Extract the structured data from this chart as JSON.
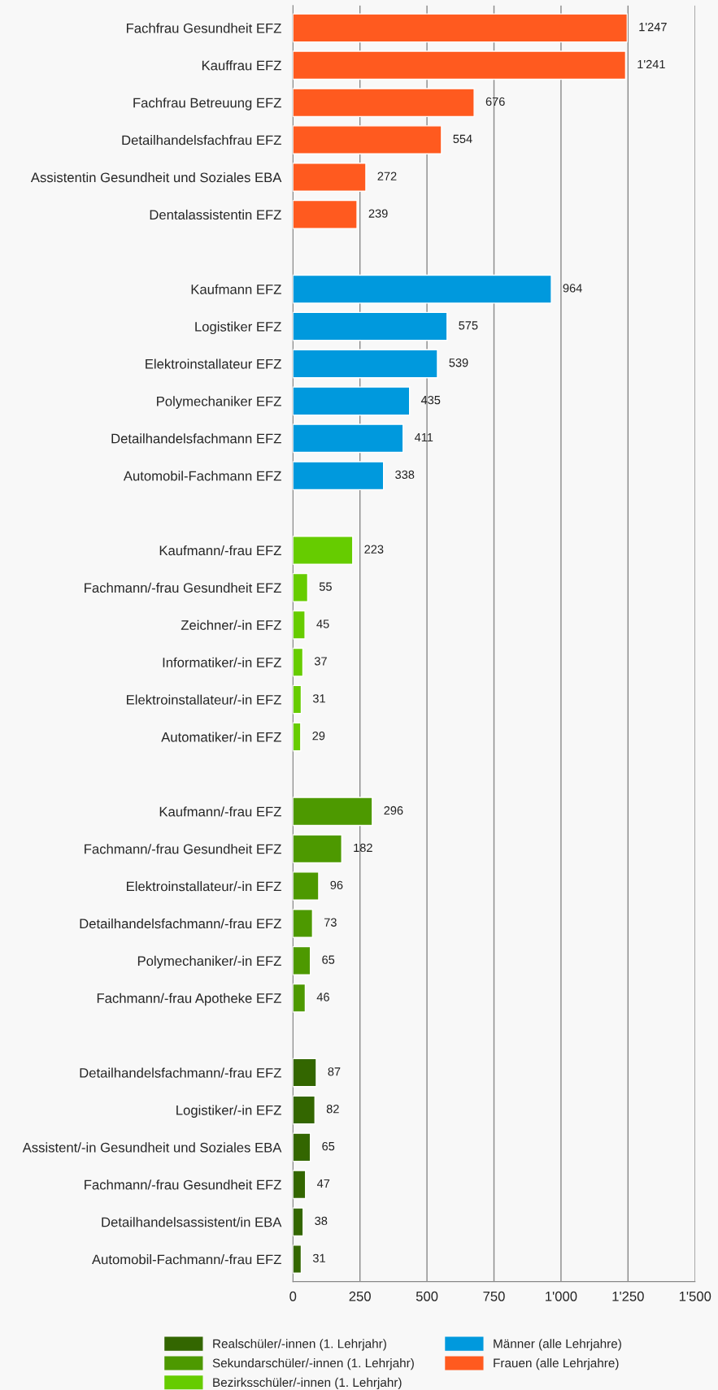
{
  "chart_data": {
    "type": "bar",
    "orientation": "horizontal",
    "categories": [
      "Fachfrau Gesundheit EFZ",
      "Kauffrau EFZ",
      "Fachfrau Betreuung EFZ",
      "Detailhandelsfachfrau EFZ",
      "Assistentin Gesundheit und Soziales EBA",
      "Dentalassistentin EFZ",
      null,
      "Kaufmann EFZ",
      "Logistiker EFZ",
      "Elektroinstallateur EFZ",
      "Polymechaniker EFZ",
      "Detailhandelsfachmann EFZ",
      "Automobil-Fachmann EFZ",
      null,
      "Kaufmann/-frau EFZ",
      "Fachmann/-frau Gesundheit EFZ",
      "Zeichner/-in EFZ",
      "Informatiker/-in EFZ",
      "Elektroinstallateur/-in EFZ",
      "Automatiker/-in EFZ",
      null,
      "Kaufmann/-frau EFZ",
      "Fachmann/-frau Gesundheit EFZ",
      "Elektroinstallateur/-in EFZ",
      "Detailhandelsfachmann/-frau EFZ",
      "Polymechaniker/-in EFZ",
      "Fachmann/-frau Apotheke EFZ",
      null,
      "Detailhandelsfachmann/-frau EFZ",
      "Logistiker/-in EFZ",
      "Assistent/-in Gesundheit und Soziales EBA",
      "Fachmann/-frau Gesundheit EFZ",
      "Detailhandelsassistent/in EBA",
      "Automobil-Fachmann/-frau EFZ"
    ],
    "series": [
      {
        "name": "Realschüler/-innen (1. Lehrjahr)",
        "color": "#336600",
        "values": [
          null,
          null,
          null,
          null,
          null,
          null,
          null,
          null,
          null,
          null,
          null,
          null,
          null,
          null,
          null,
          null,
          null,
          null,
          null,
          null,
          null,
          null,
          null,
          null,
          null,
          null,
          null,
          null,
          87,
          82,
          65,
          47,
          38,
          31
        ],
        "value_labels": [
          null,
          null,
          null,
          null,
          null,
          null,
          null,
          null,
          null,
          null,
          null,
          null,
          null,
          null,
          null,
          null,
          null,
          null,
          null,
          null,
          null,
          null,
          null,
          null,
          null,
          null,
          null,
          null,
          "87",
          "82",
          "65",
          "47",
          "38",
          "31"
        ]
      },
      {
        "name": "Sekundarschüler/-innen (1. Lehrjahr)",
        "color": "#4d9900",
        "values": [
          null,
          null,
          null,
          null,
          null,
          null,
          null,
          null,
          null,
          null,
          null,
          null,
          null,
          null,
          null,
          null,
          null,
          null,
          null,
          null,
          null,
          296,
          182,
          96,
          73,
          65,
          46,
          null,
          null,
          null,
          null,
          null,
          null,
          null
        ],
        "value_labels": [
          null,
          null,
          null,
          null,
          null,
          null,
          null,
          null,
          null,
          null,
          null,
          null,
          null,
          null,
          null,
          null,
          null,
          null,
          null,
          null,
          null,
          "296",
          "182",
          "96",
          "73",
          "65",
          "46",
          null,
          null,
          null,
          null,
          null,
          null,
          null
        ]
      },
      {
        "name": "Bezirksschüler/-innen (1. Lehrjahr)",
        "color": "#66cc00",
        "values": [
          null,
          null,
          null,
          null,
          null,
          null,
          null,
          null,
          null,
          null,
          null,
          null,
          null,
          null,
          223,
          55,
          45,
          37,
          31,
          29,
          null,
          null,
          null,
          null,
          null,
          null,
          null,
          null,
          null,
          null,
          null,
          null,
          null,
          null
        ],
        "value_labels": [
          null,
          null,
          null,
          null,
          null,
          null,
          null,
          null,
          null,
          null,
          null,
          null,
          null,
          null,
          "223",
          "55",
          "45",
          "37",
          "31",
          "29",
          null,
          null,
          null,
          null,
          null,
          null,
          null,
          null,
          null,
          null,
          null,
          null,
          null,
          null
        ]
      },
      {
        "name": "Männer (alle Lehrjahre)",
        "color": "#0099dd",
        "values": [
          null,
          null,
          null,
          null,
          null,
          null,
          null,
          964,
          575,
          539,
          435,
          411,
          338,
          null,
          null,
          null,
          null,
          null,
          null,
          null,
          null,
          null,
          null,
          null,
          null,
          null,
          null,
          null,
          null,
          null,
          null,
          null,
          null,
          null
        ],
        "value_labels": [
          null,
          null,
          null,
          null,
          null,
          null,
          null,
          "964",
          "575",
          "539",
          "435",
          "411",
          "338",
          null,
          null,
          null,
          null,
          null,
          null,
          null,
          null,
          null,
          null,
          null,
          null,
          null,
          null,
          null,
          null,
          null,
          null,
          null,
          null,
          null
        ]
      },
      {
        "name": "Frauen (alle Lehrjahre)",
        "color": "#ff5a1f",
        "values": [
          1247,
          1241,
          676,
          554,
          272,
          239,
          null,
          null,
          null,
          null,
          null,
          null,
          null,
          null,
          null,
          null,
          null,
          null,
          null,
          null,
          null,
          null,
          null,
          null,
          null,
          null,
          null,
          null,
          null,
          null,
          null,
          null,
          null,
          null
        ],
        "value_labels": [
          "1'247",
          "1'241",
          "676",
          "554",
          "272",
          "239",
          null,
          null,
          null,
          null,
          null,
          null,
          null,
          null,
          null,
          null,
          null,
          null,
          null,
          null,
          null,
          null,
          null,
          null,
          null,
          null,
          null,
          null,
          null,
          null,
          null,
          null,
          null,
          null
        ]
      }
    ],
    "xlim": [
      0,
      1500
    ],
    "xticks": [
      0,
      250,
      500,
      750,
      {
        "value": 1000,
        "label": "1'000"
      },
      {
        "value": 1250,
        "label": "1'250"
      },
      {
        "value": 1500,
        "label": "1'500"
      }
    ],
    "grid": "x",
    "legend": "bottom"
  }
}
